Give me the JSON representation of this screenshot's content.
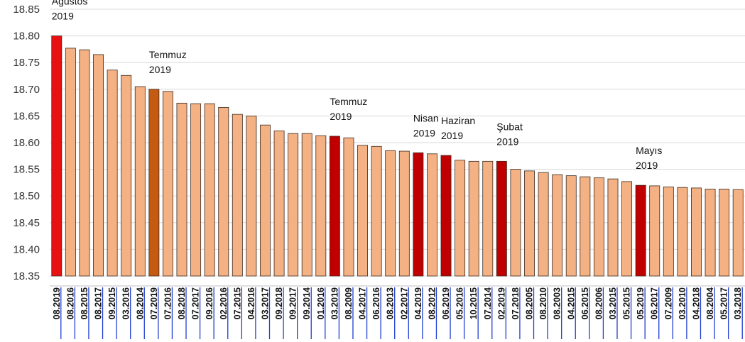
{
  "chart_data": {
    "type": "bar",
    "categories": [
      "08.2019",
      "08.2016",
      "08.2015",
      "08.2017",
      "09.2015",
      "03.2016",
      "08.2014",
      "07.2019",
      "07.2016",
      "08.2018",
      "07.2017",
      "09.2016",
      "02.2016",
      "07.2015",
      "04.2016",
      "03.2017",
      "09.2018",
      "09.2017",
      "09.2014",
      "01.2016",
      "03.2019",
      "08.2009",
      "04.2017",
      "06.2016",
      "08.2013",
      "02.2017",
      "04.2019",
      "08.2012",
      "06.2019",
      "05.2016",
      "10.2015",
      "07.2014",
      "02.2019",
      "07.2018",
      "08.2005",
      "08.2010",
      "08.2003",
      "04.2015",
      "06.2015",
      "08.2006",
      "03.2015",
      "05.2015",
      "05.2019",
      "06.2017",
      "07.2009",
      "03.2010",
      "04.2018",
      "08.2004",
      "05.2017",
      "03.2018"
    ],
    "values": [
      18.8,
      18.777,
      18.774,
      18.765,
      18.736,
      18.726,
      18.705,
      18.7,
      18.696,
      18.674,
      18.673,
      18.673,
      18.666,
      18.653,
      18.65,
      18.633,
      18.622,
      18.617,
      18.617,
      18.613,
      18.612,
      18.609,
      18.595,
      18.593,
      18.585,
      18.584,
      18.581,
      18.579,
      18.576,
      18.567,
      18.565,
      18.565,
      18.565,
      18.55,
      18.547,
      18.544,
      18.54,
      18.538,
      18.536,
      18.534,
      18.532,
      18.527,
      18.52,
      18.519,
      18.517,
      18.516,
      18.515,
      18.513,
      18.513,
      18.512
    ],
    "color": "#f4b183",
    "colors": [
      "#e81010",
      "#f4b183",
      "#f4b183",
      "#f4b183",
      "#f4b183",
      "#f4b183",
      "#f4b183",
      "#c55a11",
      "#f4b183",
      "#f4b183",
      "#f4b183",
      "#f4b183",
      "#f4b183",
      "#f4b183",
      "#f4b183",
      "#f4b183",
      "#f4b183",
      "#f4b183",
      "#f4b183",
      "#f4b183",
      "#c00000",
      "#f4b183",
      "#f4b183",
      "#f4b183",
      "#f4b183",
      "#f4b183",
      "#c00000",
      "#f4b183",
      "#c00000",
      "#f4b183",
      "#f4b183",
      "#f4b183",
      "#c00000",
      "#f4b183",
      "#f4b183",
      "#f4b183",
      "#f4b183",
      "#f4b183",
      "#f4b183",
      "#f4b183",
      "#f4b183",
      "#f4b183",
      "#c00000",
      "#f4b183",
      "#f4b183",
      "#f4b183",
      "#f4b183",
      "#f4b183",
      "#f4b183",
      "#f4b183"
    ],
    "annotations": [
      "Ağustos 2019",
      "Temmuz 2019",
      "Temmuz 2019",
      "Nisan 2019",
      "Haziran 2019",
      "Şubat 2019",
      "Mayıs 2019"
    ],
    "ylim": [
      18.35,
      18.85
    ],
    "yticks": [
      18.35,
      {
        "value": 18.4,
        "label": "18.40"
      },
      18.45,
      {
        "value": 18.5,
        "label": "18.50"
      },
      18.55,
      {
        "value": 18.6,
        "label": "18.60"
      },
      18.65,
      {
        "value": 18.7,
        "label": "18.70"
      },
      18.75,
      {
        "value": 18.8,
        "label": "18.80"
      },
      18.85
    ],
    "grid": true
  }
}
